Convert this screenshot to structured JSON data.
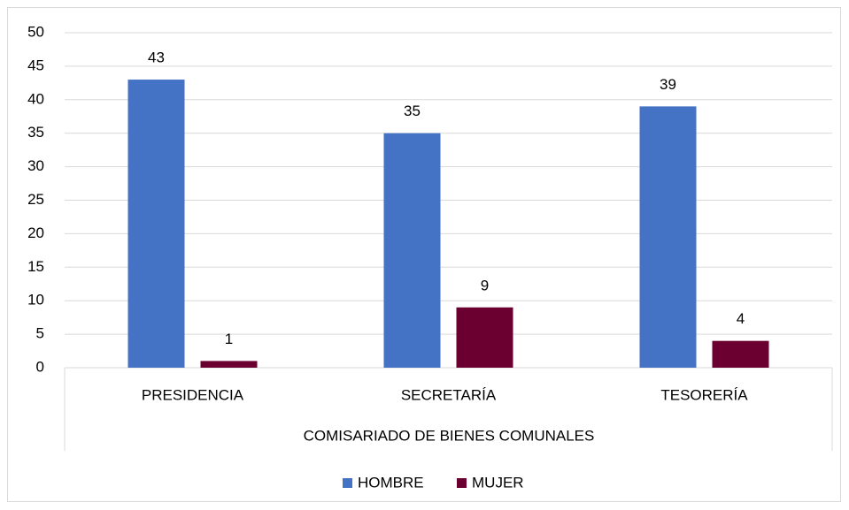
{
  "chart_data": {
    "type": "bar",
    "categories": [
      "PRESIDENCIA",
      "SECRETARÍA",
      "TESORERÍA"
    ],
    "x_label": "COMISARIADO DE BIENES COMUNALES",
    "series": [
      {
        "name": "HOMBRE",
        "color": "#4472c4",
        "values": [
          43,
          35,
          39
        ]
      },
      {
        "name": "MUJER",
        "color": "#6b0030",
        "values": [
          1,
          9,
          4
        ]
      }
    ],
    "ylim": [
      0,
      50
    ],
    "yticks": [
      0,
      5,
      10,
      15,
      20,
      25,
      30,
      35,
      40,
      45,
      50
    ],
    "grid": true,
    "legend": "bottom"
  }
}
